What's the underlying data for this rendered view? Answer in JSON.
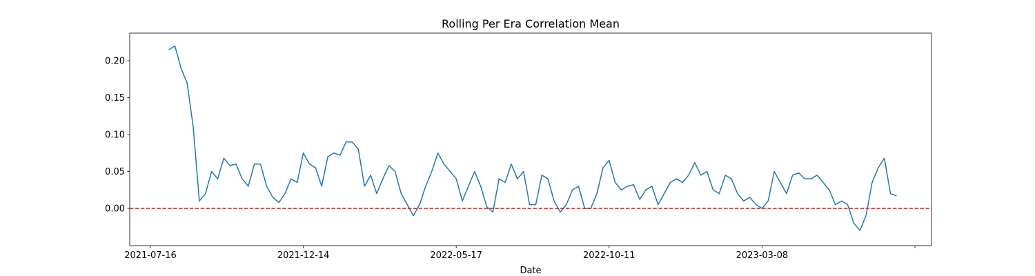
{
  "chart_data": {
    "type": "line",
    "title": "Rolling Per Era Correlation Mean",
    "x_label": "Date",
    "categories": [
      "2021-07-16",
      null,
      null,
      null,
      null,
      null,
      null,
      null,
      null,
      null,
      null,
      null,
      null,
      null,
      null,
      null,
      null,
      null,
      null,
      null,
      null,
      null,
      null,
      null,
      null,
      "2021-12-14",
      null,
      null,
      null,
      null,
      null,
      null,
      null,
      null,
      null,
      null,
      null,
      null,
      null,
      null,
      null,
      null,
      null,
      null,
      null,
      null,
      null,
      null,
      null,
      null,
      "2022-05-17",
      null,
      null,
      null,
      null,
      null,
      null,
      null,
      null,
      null,
      null,
      null,
      null,
      null,
      null,
      null,
      null,
      null,
      null,
      null,
      null,
      null,
      null,
      null,
      null,
      "2022-10-11",
      null,
      null,
      null,
      null,
      null,
      null,
      null,
      null,
      null,
      null,
      null,
      null,
      null,
      null,
      null,
      null,
      null,
      null,
      null,
      null,
      null,
      null,
      null,
      null,
      "2023-03-08",
      null,
      null,
      null,
      null,
      null,
      null,
      null,
      null,
      null,
      null,
      null,
      null,
      null,
      null,
      null,
      null,
      null,
      null,
      null,
      null,
      null,
      null,
      null,
      null,
      null
    ],
    "values": [
      null,
      null,
      null,
      0.215,
      0.22,
      0.19,
      0.17,
      0.11,
      0.01,
      0.02,
      0.05,
      0.04,
      0.068,
      0.058,
      0.06,
      0.04,
      0.03,
      0.06,
      0.06,
      0.03,
      0.015,
      0.008,
      0.02,
      0.04,
      0.035,
      0.075,
      0.06,
      0.055,
      0.03,
      0.07,
      0.075,
      0.072,
      0.09,
      0.09,
      0.08,
      0.03,
      0.045,
      0.02,
      0.04,
      0.058,
      0.05,
      0.02,
      0.005,
      -0.01,
      0.005,
      0.03,
      0.05,
      0.075,
      0.06,
      0.05,
      0.04,
      0.01,
      0.03,
      0.05,
      0.03,
      0.002,
      -0.005,
      0.04,
      0.035,
      0.06,
      0.04,
      0.05,
      0.005,
      0.005,
      0.045,
      0.04,
      0.01,
      -0.005,
      0.005,
      0.025,
      0.03,
      0.0,
      0.0,
      0.02,
      0.055,
      0.065,
      0.035,
      0.025,
      0.03,
      0.032,
      0.012,
      0.025,
      0.03,
      0.005,
      0.02,
      0.035,
      0.04,
      0.035,
      0.045,
      0.062,
      0.045,
      0.05,
      0.025,
      0.02,
      0.045,
      0.04,
      0.02,
      0.01,
      0.015,
      0.005,
      0.0,
      0.01,
      0.05,
      0.035,
      0.02,
      0.045,
      0.048,
      0.04,
      0.04,
      0.045,
      0.035,
      0.025,
      0.005,
      0.01,
      0.005,
      -0.02,
      -0.03,
      -0.01,
      0.035,
      0.055,
      0.068,
      0.02,
      0.017,
      null,
      null,
      null
    ],
    "color": "#1f77b4",
    "ylim": [
      -0.0505,
      0.2374
    ],
    "yticks": [
      {
        "value": 0,
        "label": "0.00"
      },
      {
        "value": 0.05,
        "label": "0.05"
      },
      {
        "value": 0.1,
        "label": "0.10"
      },
      {
        "value": 0.15,
        "label": "0.15"
      },
      {
        "value": 0.2,
        "label": "0.20"
      }
    ],
    "reference_line": {
      "value": 0,
      "color": "#ff0000",
      "style": "dashed"
    },
    "grid": false
  }
}
